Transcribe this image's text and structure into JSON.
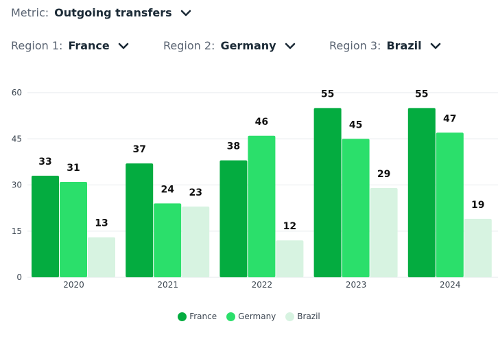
{
  "controls": {
    "metric": {
      "label": "Metric:",
      "value": "Outgoing transfers"
    },
    "region1": {
      "label": "Region 1:",
      "value": "France"
    },
    "region2": {
      "label": "Region 2:",
      "value": "Germany"
    },
    "region3": {
      "label": "Region 3:",
      "value": "Brazil"
    }
  },
  "colors": {
    "France": "#04ac40",
    "Germany": "#2bdf6b",
    "Brazil": "#d7f3e1",
    "grid": "#e6e9ec"
  },
  "chart_data": {
    "type": "bar",
    "categories": [
      "2020",
      "2021",
      "2022",
      "2023",
      "2024"
    ],
    "series": [
      {
        "name": "France",
        "values": [
          33,
          37,
          38,
          55,
          55
        ]
      },
      {
        "name": "Germany",
        "values": [
          31,
          24,
          46,
          45,
          47
        ]
      },
      {
        "name": "Brazil",
        "values": [
          13,
          23,
          12,
          29,
          19
        ]
      }
    ],
    "yticks": [
      0,
      15,
      30,
      45,
      60
    ],
    "ylim": [
      0,
      60
    ],
    "grid": true,
    "legend_position": "bottom",
    "data_labels": true
  }
}
